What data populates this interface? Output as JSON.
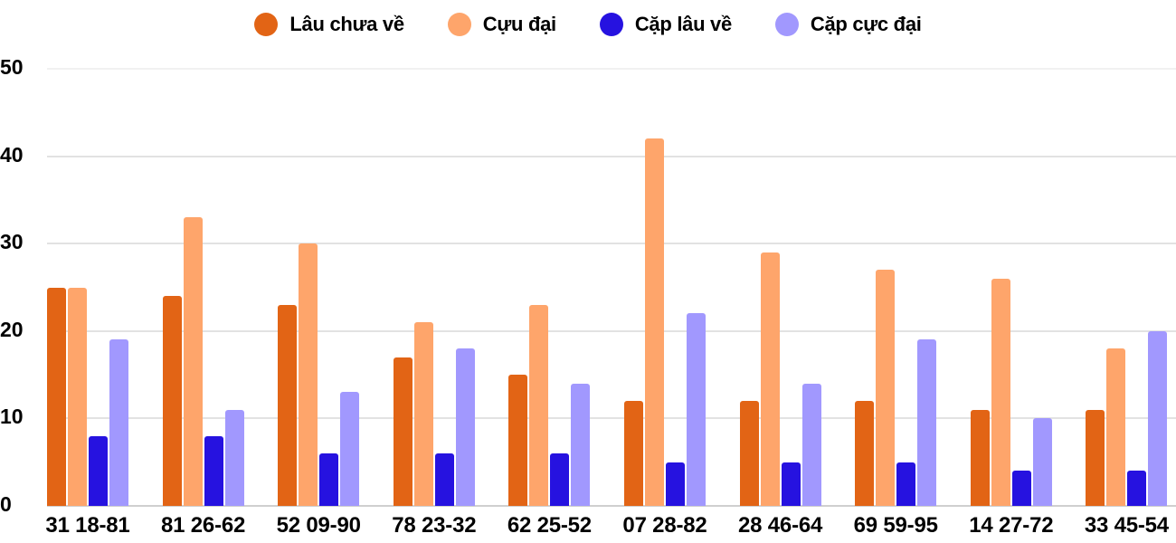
{
  "chart_data": {
    "type": "bar",
    "title": "",
    "xlabel": "",
    "ylabel": "",
    "ylim": [
      0,
      50
    ],
    "yticks": [
      0,
      10,
      20,
      30,
      40,
      50
    ],
    "grid": true,
    "legend_position": "top",
    "categories": [
      "31 18-81",
      "81 26-62",
      "52 09-90",
      "78 23-32",
      "62 25-52",
      "07 28-82",
      "28 46-64",
      "69 59-95",
      "14 27-72",
      "33 45-54"
    ],
    "series": [
      {
        "name": "Lâu chưa về",
        "color": "#e26415",
        "values": [
          25,
          24,
          23,
          17,
          15,
          12,
          12,
          12,
          11,
          11
        ]
      },
      {
        "name": "Cựu đại",
        "color": "#fea56b",
        "values": [
          25,
          33,
          30,
          21,
          23,
          42,
          29,
          27,
          26,
          18
        ]
      },
      {
        "name": "Cặp lâu về",
        "color": "#2612e0",
        "values": [
          8,
          8,
          6,
          6,
          6,
          5,
          5,
          5,
          4,
          4
        ]
      },
      {
        "name": "Cặp cực đại",
        "color": "#a198fe",
        "values": [
          19,
          11,
          13,
          18,
          14,
          22,
          14,
          19,
          10,
          20
        ]
      }
    ]
  }
}
